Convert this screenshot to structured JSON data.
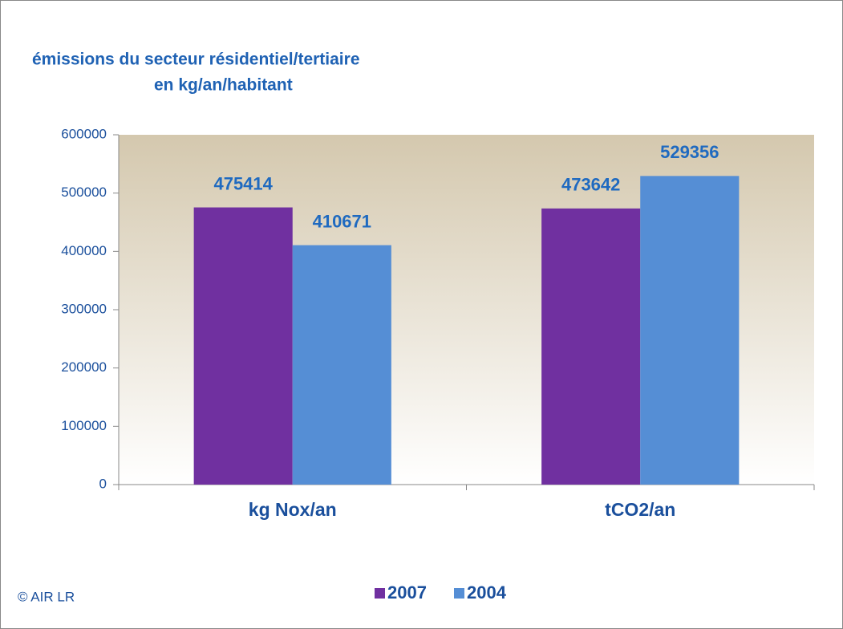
{
  "chart_data": {
    "type": "bar",
    "title": "émissions du secteur résidentiel/tertiaire",
    "subtitle": "en kg/an/habitant",
    "categories": [
      "kg Nox/an",
      "tCO2/an"
    ],
    "series": [
      {
        "name": "2007",
        "color": "#7030a0",
        "values": [
          475414,
          473642
        ]
      },
      {
        "name": "2004",
        "color": "#558ed5",
        "values": [
          410671,
          529356
        ]
      }
    ],
    "ylim": [
      0,
      600000
    ],
    "yticks": [
      0,
      100000,
      200000,
      300000,
      400000,
      500000,
      600000
    ],
    "legend": "bottom",
    "annotation": "© AIR LR"
  }
}
